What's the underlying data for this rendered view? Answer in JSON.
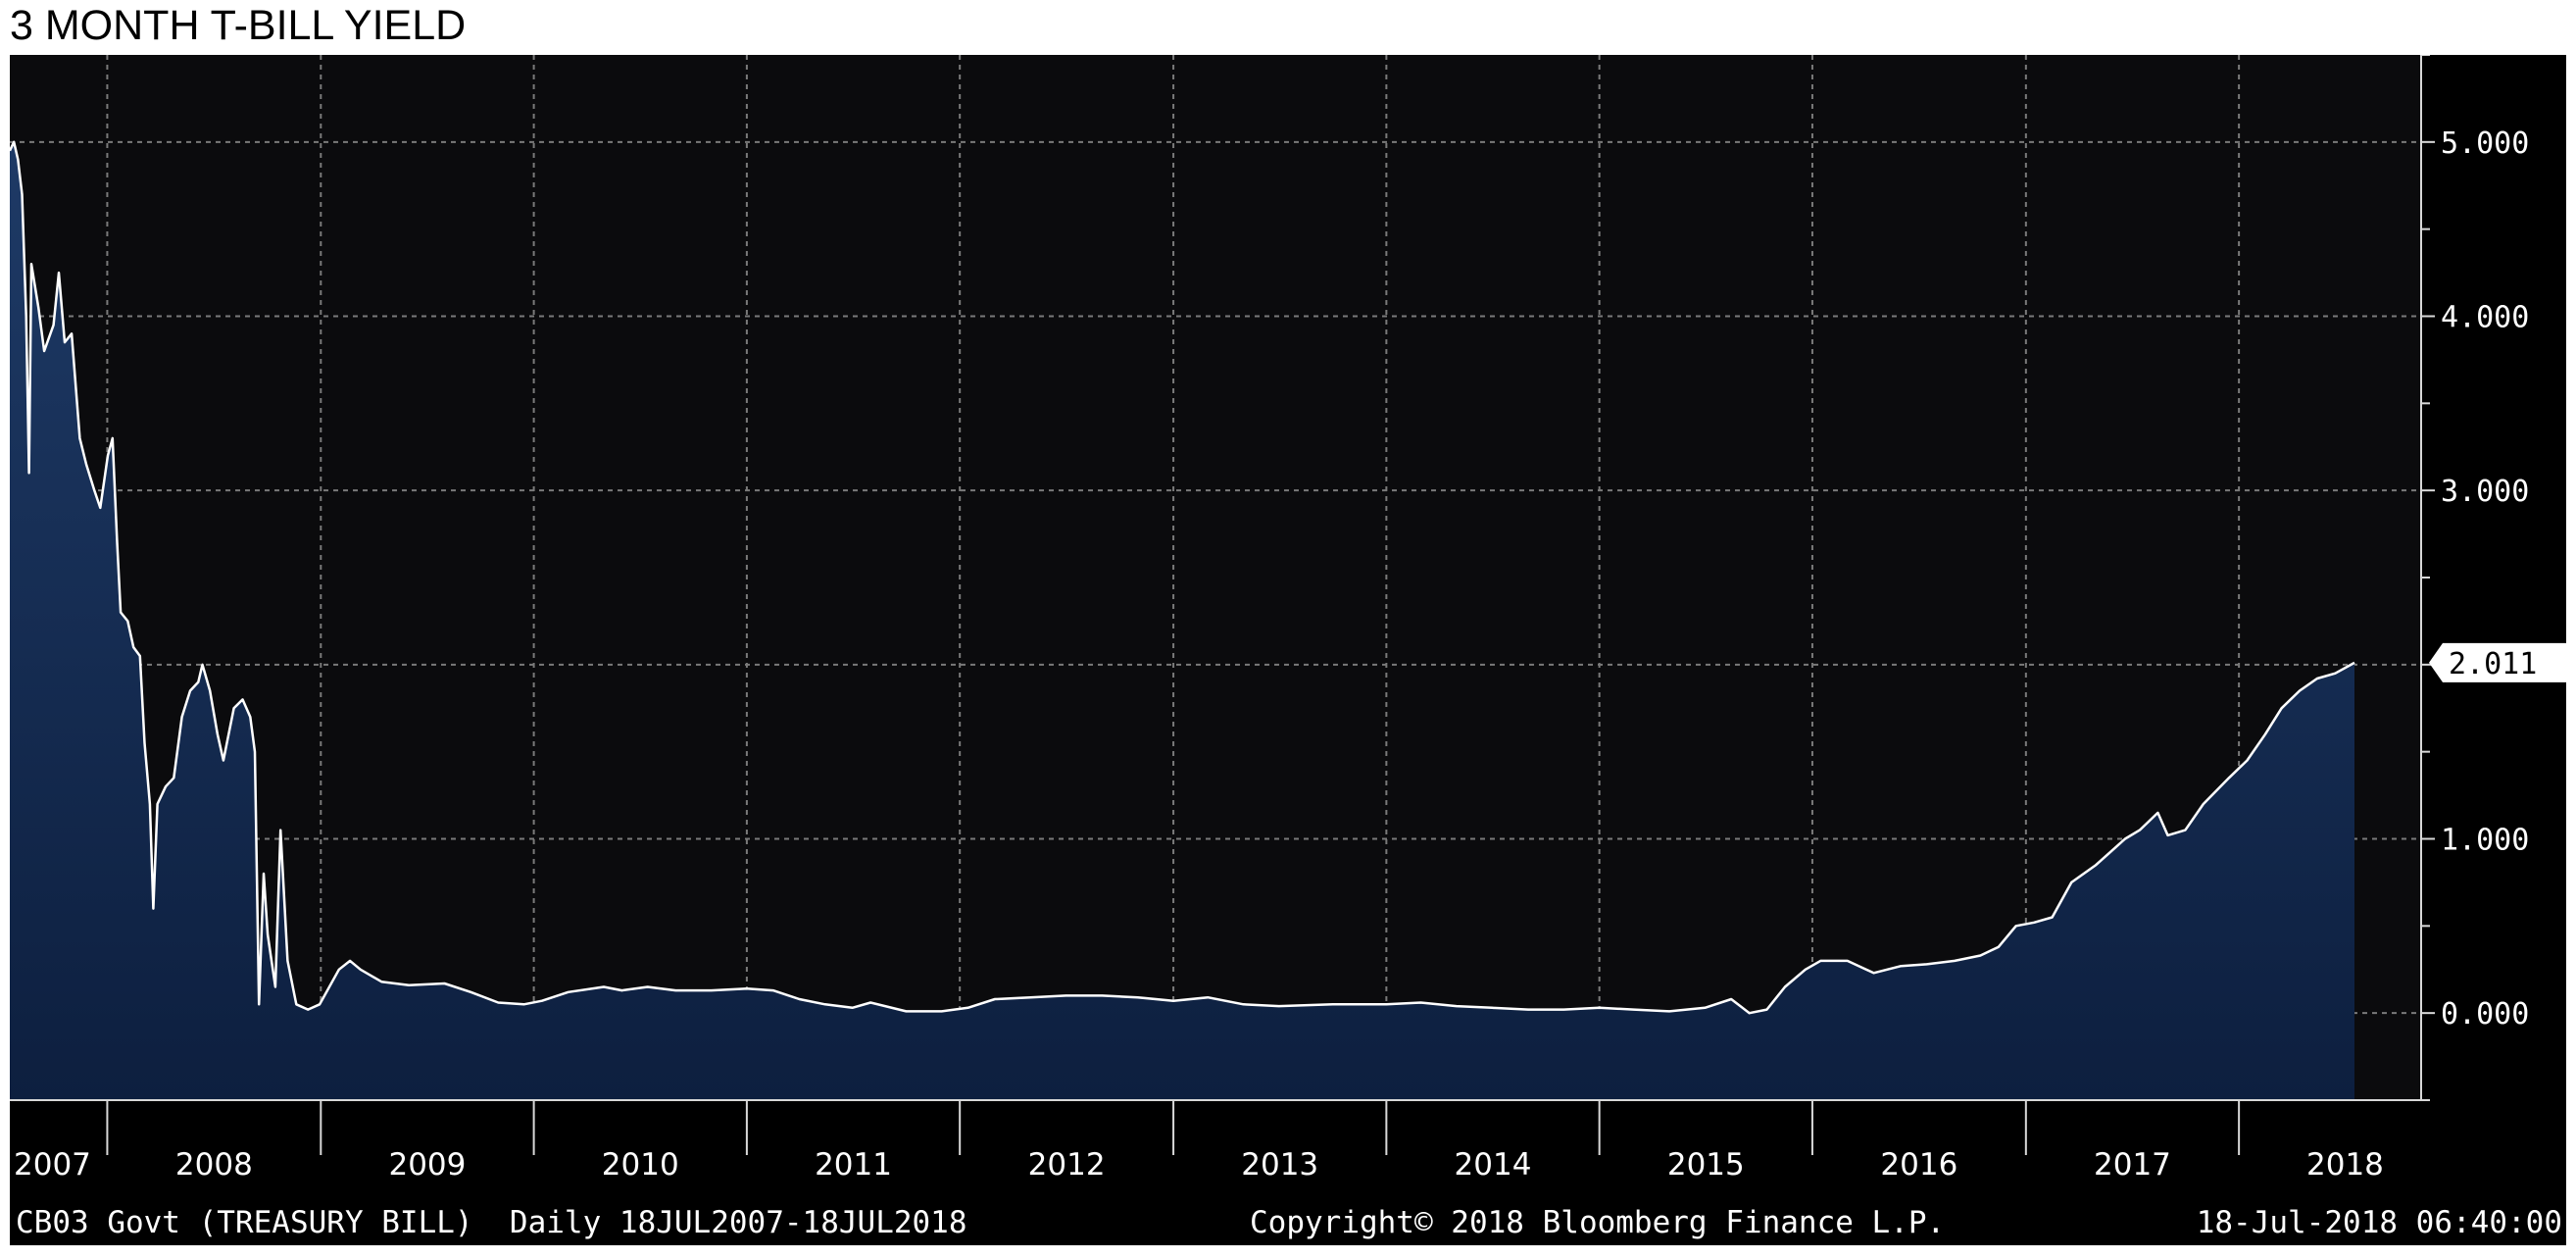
{
  "chart_data": {
    "type": "area",
    "title": "3 MONTH T-BILL YIELD",
    "footer": {
      "security": "CB03 Govt (TREASURY BILL)",
      "range": "Daily 18JUL2007-18JUL2018",
      "copyright": "Copyright© 2018 Bloomberg Finance L.P.",
      "timestamp": "18-Jul-2018 06:40:00"
    },
    "x_tick_labels": [
      "2007",
      "2008",
      "2009",
      "2010",
      "2011",
      "2012",
      "2013",
      "2014",
      "2015",
      "2016",
      "2017",
      "2018"
    ],
    "y_tick_labels": [
      "5.000",
      "4.000",
      "3.000",
      "2.000",
      "1.000",
      "0.000"
    ],
    "ylim": [
      -0.5,
      5.5
    ],
    "xlim": [
      "2007-07-18",
      "2018-07-18"
    ],
    "last_value_label": "2.011",
    "grid": true,
    "colors": {
      "line": "#ffffff",
      "fill_top": "#1e3a66",
      "fill_bottom": "#0d1f3f",
      "background": "#000000",
      "grid": "#7a7a7a",
      "last_value_badge": "#ffffff"
    },
    "series": [
      {
        "values": [
          [
            "2007-07-18",
            4.95
          ],
          [
            "2007-07-25",
            5.0
          ],
          [
            "2007-08-01",
            4.9
          ],
          [
            "2007-08-08",
            4.7
          ],
          [
            "2007-08-15",
            4.0
          ],
          [
            "2007-08-20",
            3.1
          ],
          [
            "2007-08-24",
            4.3
          ],
          [
            "2007-09-05",
            4.05
          ],
          [
            "2007-09-15",
            3.8
          ],
          [
            "2007-10-01",
            3.95
          ],
          [
            "2007-10-10",
            4.25
          ],
          [
            "2007-10-20",
            3.85
          ],
          [
            "2007-11-01",
            3.9
          ],
          [
            "2007-11-15",
            3.3
          ],
          [
            "2007-11-26",
            3.15
          ],
          [
            "2007-12-10",
            3.0
          ],
          [
            "2007-12-20",
            2.9
          ],
          [
            "2008-01-02",
            3.2
          ],
          [
            "2008-01-10",
            3.3
          ],
          [
            "2008-01-18",
            2.7
          ],
          [
            "2008-01-24",
            2.3
          ],
          [
            "2008-02-05",
            2.25
          ],
          [
            "2008-02-15",
            2.1
          ],
          [
            "2008-02-26",
            2.05
          ],
          [
            "2008-03-05",
            1.55
          ],
          [
            "2008-03-14",
            1.2
          ],
          [
            "2008-03-20",
            0.6
          ],
          [
            "2008-03-27",
            1.2
          ],
          [
            "2008-04-10",
            1.3
          ],
          [
            "2008-04-24",
            1.35
          ],
          [
            "2008-05-08",
            1.7
          ],
          [
            "2008-05-22",
            1.85
          ],
          [
            "2008-06-05",
            1.9
          ],
          [
            "2008-06-12",
            2.0
          ],
          [
            "2008-06-25",
            1.85
          ],
          [
            "2008-07-08",
            1.6
          ],
          [
            "2008-07-18",
            1.45
          ],
          [
            "2008-08-05",
            1.75
          ],
          [
            "2008-08-20",
            1.8
          ],
          [
            "2008-09-02",
            1.7
          ],
          [
            "2008-09-10",
            1.5
          ],
          [
            "2008-09-17",
            0.05
          ],
          [
            "2008-09-25",
            0.8
          ],
          [
            "2008-10-02",
            0.45
          ],
          [
            "2008-10-15",
            0.15
          ],
          [
            "2008-10-24",
            1.05
          ],
          [
            "2008-11-05",
            0.3
          ],
          [
            "2008-11-20",
            0.05
          ],
          [
            "2008-12-10",
            0.02
          ],
          [
            "2008-12-30",
            0.05
          ],
          [
            "2009-02-01",
            0.25
          ],
          [
            "2009-02-20",
            0.3
          ],
          [
            "2009-03-10",
            0.25
          ],
          [
            "2009-04-15",
            0.18
          ],
          [
            "2009-06-01",
            0.16
          ],
          [
            "2009-08-01",
            0.17
          ],
          [
            "2009-09-15",
            0.12
          ],
          [
            "2009-11-01",
            0.06
          ],
          [
            "2009-12-15",
            0.05
          ],
          [
            "2010-01-15",
            0.07
          ],
          [
            "2010-03-01",
            0.12
          ],
          [
            "2010-05-01",
            0.15
          ],
          [
            "2010-06-01",
            0.13
          ],
          [
            "2010-07-15",
            0.15
          ],
          [
            "2010-09-01",
            0.13
          ],
          [
            "2010-11-01",
            0.13
          ],
          [
            "2011-01-01",
            0.14
          ],
          [
            "2011-02-15",
            0.13
          ],
          [
            "2011-04-01",
            0.08
          ],
          [
            "2011-05-15",
            0.05
          ],
          [
            "2011-07-01",
            0.03
          ],
          [
            "2011-08-01",
            0.06
          ],
          [
            "2011-10-01",
            0.01
          ],
          [
            "2011-12-01",
            0.01
          ],
          [
            "2012-01-15",
            0.03
          ],
          [
            "2012-03-01",
            0.08
          ],
          [
            "2012-05-01",
            0.09
          ],
          [
            "2012-07-01",
            0.1
          ],
          [
            "2012-09-01",
            0.1
          ],
          [
            "2012-11-01",
            0.09
          ],
          [
            "2013-01-01",
            0.07
          ],
          [
            "2013-03-01",
            0.09
          ],
          [
            "2013-05-01",
            0.05
          ],
          [
            "2013-07-01",
            0.04
          ],
          [
            "2013-10-01",
            0.05
          ],
          [
            "2014-01-01",
            0.05
          ],
          [
            "2014-03-01",
            0.06
          ],
          [
            "2014-05-01",
            0.04
          ],
          [
            "2014-07-01",
            0.03
          ],
          [
            "2014-09-01",
            0.02
          ],
          [
            "2014-11-01",
            0.02
          ],
          [
            "2015-01-01",
            0.03
          ],
          [
            "2015-03-01",
            0.02
          ],
          [
            "2015-05-01",
            0.01
          ],
          [
            "2015-07-01",
            0.03
          ],
          [
            "2015-08-15",
            0.08
          ],
          [
            "2015-09-15",
            0.0
          ],
          [
            "2015-10-15",
            0.02
          ],
          [
            "2015-11-15",
            0.15
          ],
          [
            "2015-12-20",
            0.25
          ],
          [
            "2016-01-15",
            0.3
          ],
          [
            "2016-03-01",
            0.3
          ],
          [
            "2016-04-15",
            0.23
          ],
          [
            "2016-06-01",
            0.27
          ],
          [
            "2016-07-15",
            0.28
          ],
          [
            "2016-09-01",
            0.3
          ],
          [
            "2016-10-15",
            0.33
          ],
          [
            "2016-11-15",
            0.38
          ],
          [
            "2016-12-15",
            0.5
          ],
          [
            "2017-01-15",
            0.52
          ],
          [
            "2017-02-15",
            0.55
          ],
          [
            "2017-03-20",
            0.75
          ],
          [
            "2017-05-01",
            0.85
          ],
          [
            "2017-06-20",
            1.0
          ],
          [
            "2017-07-15",
            1.05
          ],
          [
            "2017-08-15",
            1.15
          ],
          [
            "2017-09-01",
            1.02
          ],
          [
            "2017-10-01",
            1.05
          ],
          [
            "2017-11-01",
            1.2
          ],
          [
            "2017-12-15",
            1.35
          ],
          [
            "2018-01-15",
            1.45
          ],
          [
            "2018-02-15",
            1.6
          ],
          [
            "2018-03-15",
            1.75
          ],
          [
            "2018-04-15",
            1.85
          ],
          [
            "2018-05-15",
            1.92
          ],
          [
            "2018-06-15",
            1.95
          ],
          [
            "2018-07-18",
            2.011
          ]
        ]
      }
    ]
  }
}
